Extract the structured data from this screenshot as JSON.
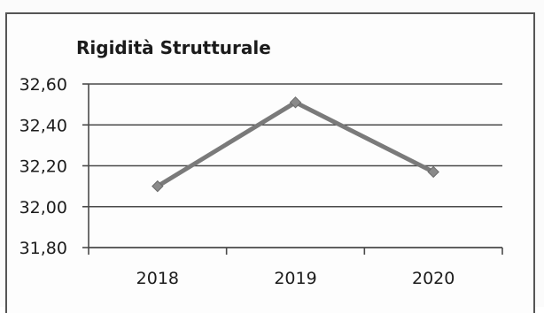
{
  "chart_data": {
    "type": "line",
    "title": "Rigidità Strutturale",
    "xlabel": "",
    "ylabel": "",
    "categories": [
      "2018",
      "2019",
      "2020"
    ],
    "series": [
      {
        "values": [
          32.1,
          32.51,
          32.17
        ]
      }
    ],
    "ylim": [
      31.8,
      32.6
    ],
    "yticks": [
      31.8,
      32.0,
      32.2,
      32.4,
      32.6
    ],
    "ytick_labels": [
      "31,80",
      "32,00",
      "32,20",
      "32,40",
      "32,60"
    ],
    "grid": true,
    "legend": "none",
    "colors": {
      "line": "#7a7a7a",
      "marker": "#8a8a8a",
      "grid": "#4a4a4a",
      "text": "#1b1b1b"
    }
  }
}
